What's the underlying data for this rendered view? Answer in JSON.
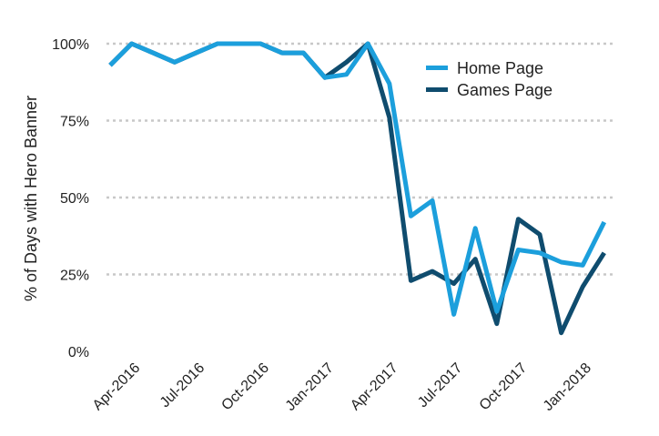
{
  "chart_data": {
    "type": "line",
    "ylabel": "% of Days with Hero Banner",
    "y_ticks": [
      "0%",
      "25%",
      "50%",
      "75%",
      "100%"
    ],
    "ylim": [
      0,
      100
    ],
    "x": [
      "2016-03",
      "2016-04",
      "2016-05",
      "2016-06",
      "2016-07",
      "2016-08",
      "2016-09",
      "2016-10",
      "2016-11",
      "2016-12",
      "2017-01",
      "2017-02",
      "2017-03",
      "2017-04",
      "2017-05",
      "2017-06",
      "2017-07",
      "2017-08",
      "2017-09",
      "2017-10",
      "2017-11",
      "2017-12",
      "2018-01",
      "2018-02"
    ],
    "x_tick_labels": [
      "Apr-2016",
      "Jul-2016",
      "Oct-2016",
      "Jan-2017",
      "Apr-2017",
      "Jul-2017",
      "Oct-2017",
      "Jan-2018"
    ],
    "x_tick_index": [
      1,
      4,
      7,
      10,
      13,
      16,
      19,
      22
    ],
    "grid": true,
    "legend_position": "top-right",
    "series": [
      {
        "name": "Games Page",
        "color": "#0f4c6e",
        "values": [
          93,
          100,
          97,
          94,
          97,
          100,
          100,
          100,
          97,
          97,
          89,
          94,
          100,
          76,
          23,
          26,
          22,
          30,
          9,
          43,
          38,
          6,
          21,
          32
        ]
      },
      {
        "name": "Home Page",
        "color": "#1c9fdc",
        "values": [
          93,
          100,
          97,
          94,
          97,
          100,
          100,
          100,
          97,
          97,
          89,
          90,
          100,
          87,
          44,
          49,
          12,
          40,
          13,
          33,
          32,
          29,
          28,
          42
        ]
      }
    ],
    "legend": [
      "Home Page",
      "Games Page"
    ]
  }
}
